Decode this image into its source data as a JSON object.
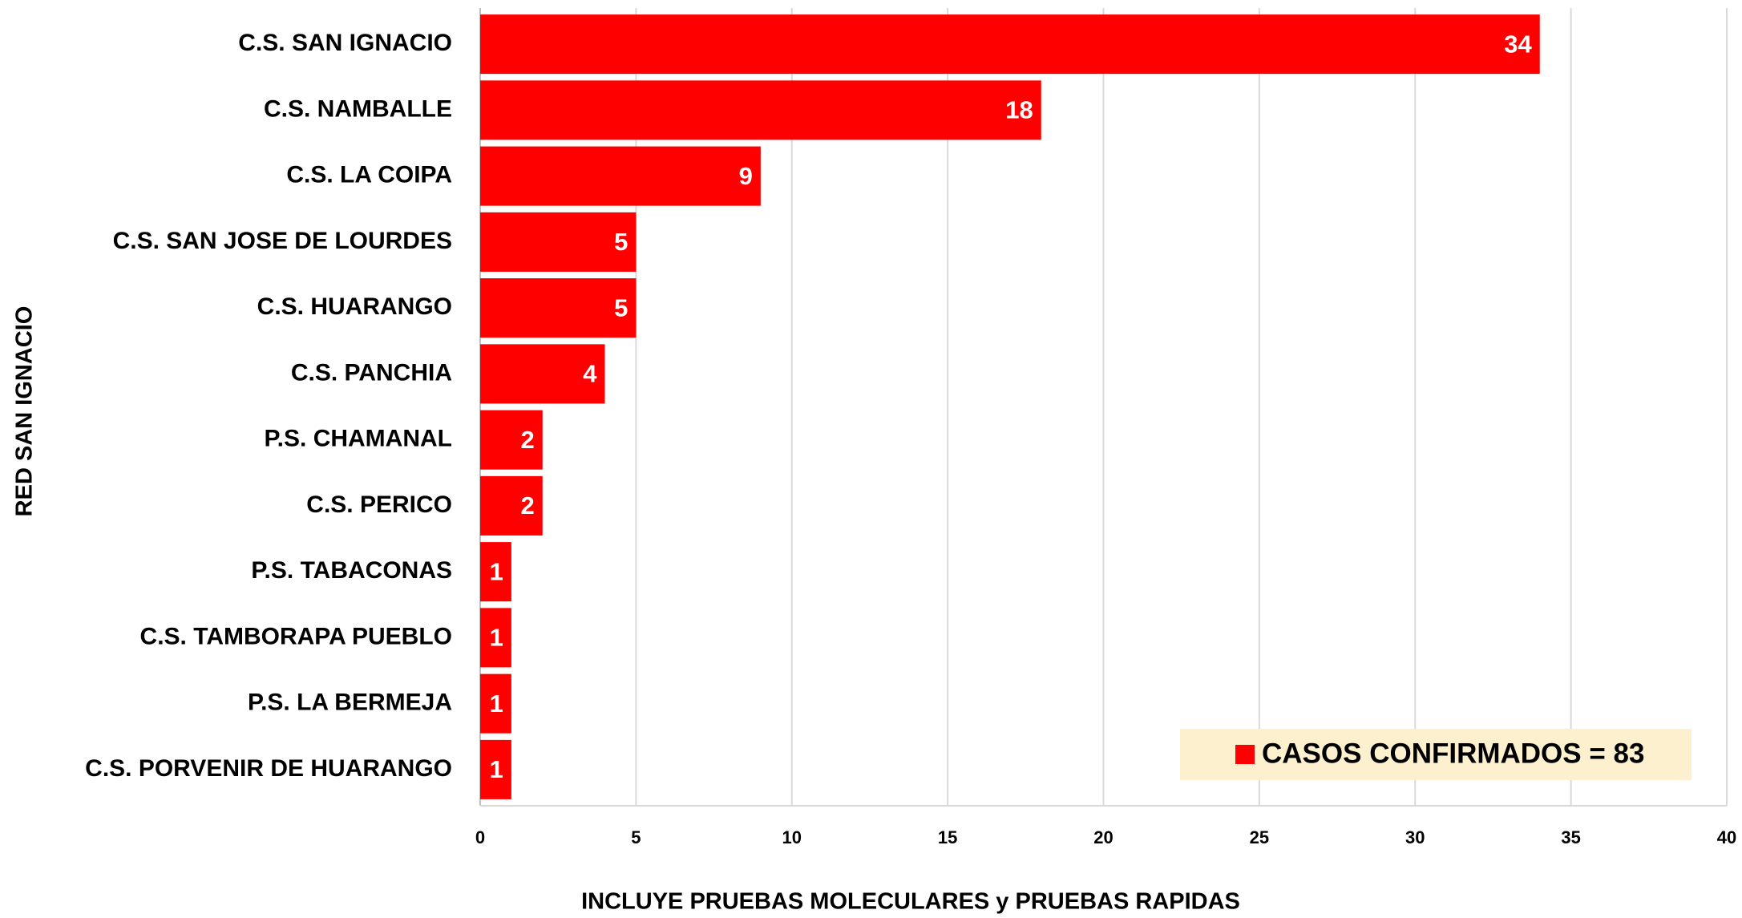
{
  "chart_data": {
    "type": "bar",
    "orientation": "horizontal",
    "categories": [
      "C.S. SAN IGNACIO",
      "C.S. NAMBALLE",
      "C.S. LA COIPA",
      "C.S. SAN JOSE DE LOURDES",
      "C.S. HUARANGO",
      "C.S. PANCHIA",
      "P.S. CHAMANAL",
      "C.S. PERICO",
      "P.S. TABACONAS",
      "C.S. TAMBORAPA PUEBLO",
      "P.S. LA BERMEJA",
      "C.S. PORVENIR DE HUARANGO"
    ],
    "series": [
      {
        "name": "CASOS CONFIRMADOS = 83",
        "color": "#ff0000",
        "values": [
          34,
          18,
          9,
          5,
          5,
          4,
          2,
          2,
          1,
          1,
          1,
          1
        ]
      }
    ],
    "xlim": [
      0,
      40
    ],
    "xticks": [
      0,
      5,
      10,
      15,
      20,
      25,
      30,
      35,
      40
    ],
    "x_label": "INCLUYE PRUEBAS MOLECULARES y PRUEBAS RAPIDAS",
    "y_label": "RED SAN IGNACIO",
    "grid": true,
    "legend": "lower right",
    "legend_background": "#fdf0cf"
  }
}
